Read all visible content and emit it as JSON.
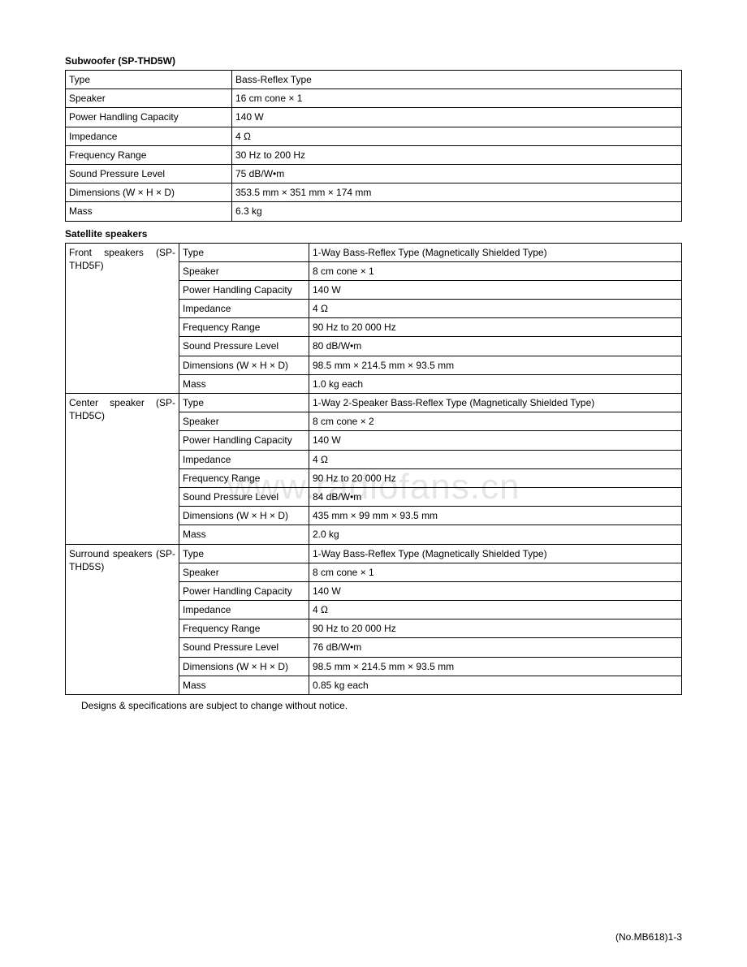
{
  "watermark": "www.radiofans.cn",
  "subwoofer": {
    "title": "Subwoofer (SP-THD5W)",
    "rows": [
      {
        "spec": "Type",
        "val": "Bass-Reflex Type"
      },
      {
        "spec": "Speaker",
        "val": "16 cm cone × 1"
      },
      {
        "spec": "Power Handling Capacity",
        "val": "140 W"
      },
      {
        "spec": "Impedance",
        "val": "4 Ω"
      },
      {
        "spec": "Frequency Range",
        "val": "30 Hz to 200 Hz"
      },
      {
        "spec": "Sound Pressure Level",
        "val": "75 dB/W•m"
      },
      {
        "spec": "Dimensions (W × H × D)",
        "val": "353.5 mm × 351 mm × 174 mm"
      },
      {
        "spec": "Mass",
        "val": "6.3 kg"
      }
    ]
  },
  "satellite": {
    "title": "Satellite speakers",
    "groups": [
      {
        "name": "Front speakers (SP-THD5F)",
        "rows": [
          {
            "spec": "Type",
            "val": "1-Way Bass-Reflex Type (Magnetically Shielded Type)"
          },
          {
            "spec": "Speaker",
            "val": "8 cm cone × 1"
          },
          {
            "spec": "Power Handling Capacity",
            "val": "140 W"
          },
          {
            "spec": "Impedance",
            "val": "4 Ω"
          },
          {
            "spec": "Frequency Range",
            "val": "90 Hz to 20 000 Hz"
          },
          {
            "spec": "Sound Pressure Level",
            "val": "80 dB/W•m"
          },
          {
            "spec": "Dimensions (W × H × D)",
            "val": "98.5 mm × 214.5 mm × 93.5 mm"
          },
          {
            "spec": "Mass",
            "val": "1.0 kg each"
          }
        ]
      },
      {
        "name": "Center speaker (SP-THD5C)",
        "rows": [
          {
            "spec": "Type",
            "val": "1-Way 2-Speaker Bass-Reflex Type (Magnetically Shielded Type)"
          },
          {
            "spec": "Speaker",
            "val": "8 cm cone × 2"
          },
          {
            "spec": "Power Handling Capacity",
            "val": "140 W"
          },
          {
            "spec": "Impedance",
            "val": "4 Ω"
          },
          {
            "spec": "Frequency Range",
            "val": "90 Hz to 20 000 Hz"
          },
          {
            "spec": "Sound Pressure Level",
            "val": "84 dB/W•m"
          },
          {
            "spec": "Dimensions (W × H × D)",
            "val": "435 mm × 99 mm × 93.5 mm"
          },
          {
            "spec": "Mass",
            "val": "2.0 kg"
          }
        ]
      },
      {
        "name": "Surround speakers (SP-THD5S)",
        "rows": [
          {
            "spec": "Type",
            "val": "1-Way Bass-Reflex Type (Magnetically Shielded Type)"
          },
          {
            "spec": "Speaker",
            "val": "8 cm cone × 1"
          },
          {
            "spec": "Power Handling Capacity",
            "val": "140 W"
          },
          {
            "spec": "Impedance",
            "val": "4 Ω"
          },
          {
            "spec": "Frequency Range",
            "val": "90 Hz to 20 000 Hz"
          },
          {
            "spec": "Sound Pressure Level",
            "val": "76 dB/W•m"
          },
          {
            "spec": "Dimensions (W × H × D)",
            "val": "98.5 mm × 214.5 mm × 93.5 mm"
          },
          {
            "spec": "Mass",
            "val": "0.85 kg each"
          }
        ]
      }
    ]
  },
  "footnote": "Designs & specifications are subject to change without notice.",
  "page_number": "(No.MB618)1-3"
}
